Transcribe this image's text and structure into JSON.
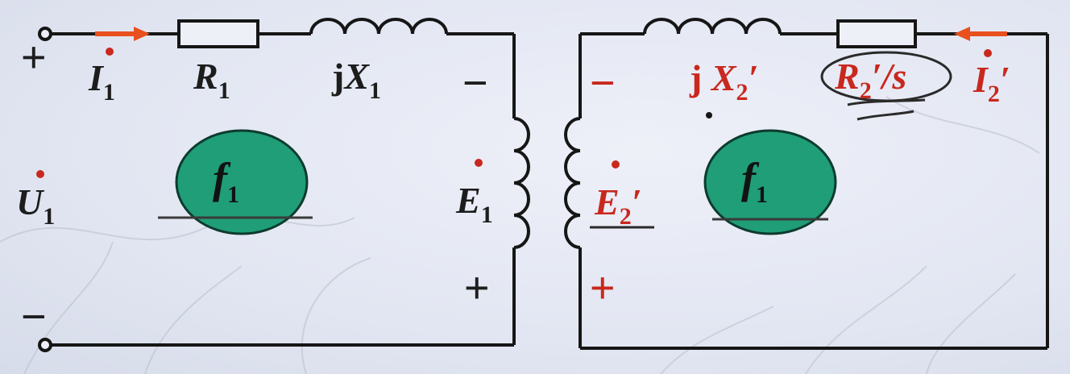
{
  "colors": {
    "wire": "#161616",
    "current_arrow": "#e8501e",
    "red_label": "#c8281e",
    "freq_fill": "#1f9e78",
    "background": "#e6e9f4"
  },
  "stator": {
    "terminal_plus": "+",
    "terminal_minus": "−",
    "voltage": {
      "symbol": "U",
      "sub": "1"
    },
    "current": {
      "symbol": "I",
      "sub": "1"
    },
    "resistance": {
      "symbol": "R",
      "sub": "1"
    },
    "reactance": {
      "j": "j",
      "symbol": "X",
      "sub": "1"
    },
    "emf": {
      "symbol": "E",
      "sub": "1"
    },
    "emf_minus": "−",
    "emf_plus": "+",
    "frequency": {
      "symbol": "f",
      "sub": "1"
    }
  },
  "rotor": {
    "reactance": {
      "j": "j ",
      "symbol": "X",
      "sub": "2",
      "prime": "′"
    },
    "resistance": {
      "symbol": "R",
      "sub": "2",
      "suffix": "′/s"
    },
    "current": {
      "symbol": "I",
      "sub": "2",
      "prime": "′"
    },
    "emf": {
      "symbol": "E",
      "sub": "2",
      "prime": "′"
    },
    "emf_minus": "−",
    "emf_plus": "+",
    "frequency": {
      "symbol": "f",
      "sub": "1"
    }
  }
}
